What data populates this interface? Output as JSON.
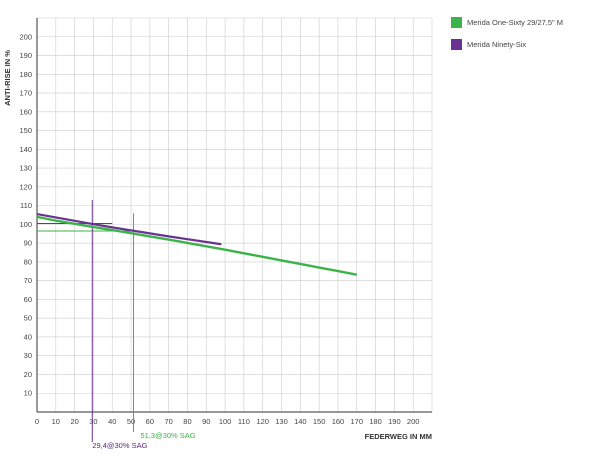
{
  "chart_data": {
    "type": "line",
    "title": "",
    "xlabel": "FEDERWEG IN MM",
    "ylabel": "ANTI-RISE IN %",
    "xlim": [
      0,
      210
    ],
    "ylim": [
      0,
      210
    ],
    "x_ticks": [
      "0",
      "10",
      "20",
      "30",
      "40",
      "50",
      "60",
      "70",
      "80",
      "90",
      "100",
      "110",
      "120",
      "130",
      "140",
      "150",
      "160",
      "170",
      "180",
      "190",
      "200"
    ],
    "y_ticks": [
      "10",
      "20",
      "30",
      "40",
      "50",
      "60",
      "70",
      "80",
      "90",
      "100",
      "110",
      "120",
      "130",
      "140",
      "150",
      "160",
      "170",
      "180",
      "190",
      "200"
    ],
    "grid": true,
    "legend_position": "top-right",
    "series": [
      {
        "name": "Merida One-Sixty 29/27,5\" M",
        "color": "#3cb34a",
        "x": [
          0,
          10,
          20,
          30,
          40,
          50,
          60,
          70,
          80,
          90,
          100,
          110,
          120,
          130,
          140,
          150,
          160,
          170
        ],
        "y": [
          104,
          102,
          100.3,
          98.6,
          97,
          95.3,
          93.6,
          91.9,
          90.1,
          88.3,
          86.5,
          84.6,
          82.7,
          80.8,
          78.9,
          77,
          75.1,
          73.2
        ],
        "sag_marker": {
          "x": 51.3,
          "y": 96.5,
          "label": "51,3@30% SAG"
        }
      },
      {
        "name": "Merida Ninety-Six",
        "color": "#6a3391",
        "x": [
          0,
          10,
          20,
          30,
          40,
          50,
          60,
          70,
          80,
          90,
          98
        ],
        "y": [
          105.5,
          103.7,
          101.9,
          100.1,
          98.4,
          96.8,
          95.2,
          93.6,
          92.1,
          90.6,
          89.4
        ],
        "sag_marker": {
          "x": 29.4,
          "y": 100.5,
          "label": "29,4@30% SAG"
        }
      }
    ]
  }
}
